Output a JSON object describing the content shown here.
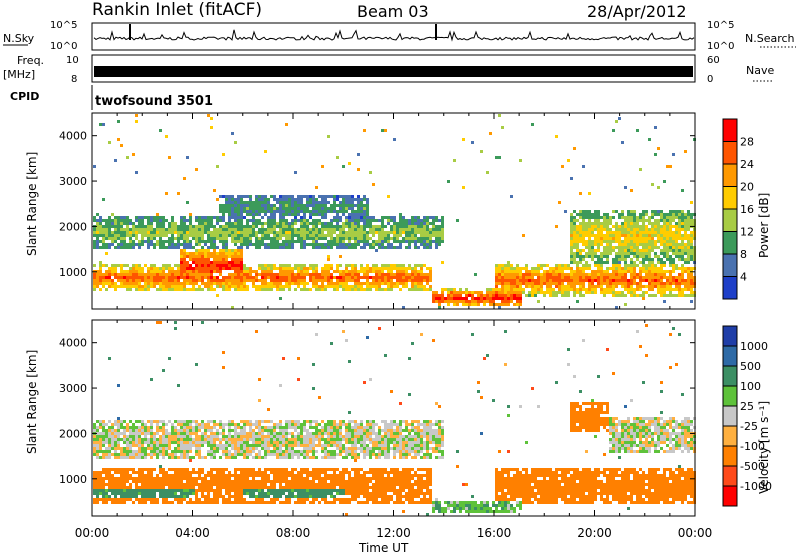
{
  "header": {
    "station": "Rankin Inlet (fitACF)",
    "beam": "Beam 03",
    "date": "28/Apr/2012"
  },
  "noise_panel": {
    "left_label": "N.Sky",
    "right_label": "N.Search",
    "left_ticks": [
      "10^5",
      "10^0"
    ],
    "right_ticks": [
      "10^5",
      "10^0"
    ]
  },
  "freq_panel": {
    "left_label": "Freq.",
    "left_unit": "[MHz]",
    "right_label": "Nave",
    "left_ticks": [
      "10",
      "8"
    ],
    "right_ticks": [
      "60",
      "0"
    ]
  },
  "cpid_panel": {
    "label": "CPID",
    "program": "twofsound 3501"
  },
  "power_panel": {
    "ylabel": "Slant Range [km]",
    "colorbar_label": "Power [dB]",
    "colorbar_ticks": [
      "28",
      "24",
      "20",
      "16",
      "12",
      "8",
      "4"
    ],
    "colorbar_colors": [
      "#ff0000",
      "#ff5500",
      "#ff9900",
      "#ffcc00",
      "#a8cc44",
      "#3c9a5a",
      "#4a72b0",
      "#1e3fc8"
    ]
  },
  "velocity_panel": {
    "ylabel": "Slant Range [km]",
    "colorbar_label": "Velocity [m s⁻¹]",
    "colorbar_ticks": [
      "1000",
      "500",
      "100",
      "25",
      "-25",
      "-100",
      "-500",
      "-1000"
    ],
    "colorbar_colors": [
      "#1f3ea8",
      "#2e6aa6",
      "#3c8f64",
      "#5ec23a",
      "#c8c8c8",
      "#ffb040",
      "#ff8000",
      "#ff4a1a",
      "#ff0000"
    ]
  },
  "chart_data": {
    "type": "heatmap",
    "xlabel": "Time UT",
    "x_ticks": [
      "00:00",
      "04:00",
      "08:00",
      "12:00",
      "16:00",
      "20:00",
      "00:00"
    ],
    "xlim_hours": [
      0,
      24
    ],
    "y_ticks": [
      1000,
      2000,
      3000,
      4000
    ],
    "ylim_km": [
      180,
      4500
    ],
    "power_bands": [
      {
        "t_start": 0,
        "t_end": 13.5,
        "range_center_km": 900,
        "range_width_km": 600,
        "power_db": 26
      },
      {
        "t_start": 3.5,
        "t_end": 6,
        "range_center_km": 1150,
        "range_width_km": 800,
        "power_db": 30
      },
      {
        "t_start": 13.5,
        "t_end": 17,
        "range_center_km": 450,
        "range_width_km": 400,
        "power_db": 30
      },
      {
        "t_start": 16,
        "t_end": 24,
        "range_center_km": 850,
        "range_width_km": 700,
        "power_db": 26
      },
      {
        "t_start": 0,
        "t_end": 14,
        "range_center_km": 1900,
        "range_width_km": 700,
        "power_db": 14
      },
      {
        "t_start": 5,
        "t_end": 11,
        "range_center_km": 2450,
        "range_width_km": 500,
        "power_db": 10
      },
      {
        "t_start": 19,
        "t_end": 24,
        "range_center_km": 1800,
        "range_width_km": 1200,
        "power_db": 18
      }
    ],
    "velocity_bands": [
      {
        "t_start": 0,
        "t_end": 14,
        "range_center_km": 1900,
        "range_width_km": 900,
        "velocity": 0
      },
      {
        "t_start": 0,
        "t_end": 13.5,
        "range_center_km": 900,
        "range_width_km": 800,
        "velocity": -300
      },
      {
        "t_start": 0,
        "t_end": 4,
        "range_center_km": 750,
        "range_width_km": 400,
        "velocity": 150
      },
      {
        "t_start": 6,
        "t_end": 10,
        "range_center_km": 800,
        "range_width_km": 500,
        "velocity": 150
      },
      {
        "t_start": 13.5,
        "t_end": 17,
        "range_center_km": 400,
        "range_width_km": 300,
        "velocity": 80
      },
      {
        "t_start": 16,
        "t_end": 24,
        "range_center_km": 850,
        "range_width_km": 800,
        "velocity": -300
      },
      {
        "t_start": 19,
        "t_end": 20.5,
        "range_center_km": 2400,
        "range_width_km": 700,
        "velocity": -400
      },
      {
        "t_start": 20.5,
        "t_end": 24,
        "range_center_km": 2000,
        "range_width_km": 800,
        "velocity": 0
      }
    ]
  }
}
